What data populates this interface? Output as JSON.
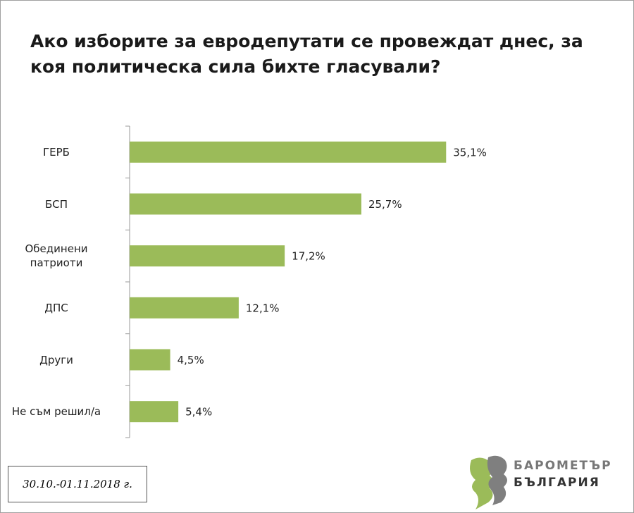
{
  "chart_data": {
    "type": "bar",
    "orientation": "horizontal",
    "title": "Ако изборите за евродепутати се провеждат днес, за\nкоя политическа сила бихте гласували?",
    "categories": [
      "ГЕРБ",
      "БСП",
      "Обединени\nпатриоти",
      "ДПС",
      "Други",
      "Не съм решил/а"
    ],
    "values": [
      35.1,
      25.7,
      17.2,
      12.1,
      4.5,
      5.4
    ],
    "value_labels": [
      "35,1%",
      "25,7%",
      "17,2%",
      "12,1%",
      "4,5%",
      "5,4%"
    ],
    "color": "#9bbb59"
  },
  "date": "30.10.-01.11.2018 г.",
  "logo": {
    "line1": "БАРОМЕТЪР",
    "line2": "БЪЛГАРИЯ"
  }
}
